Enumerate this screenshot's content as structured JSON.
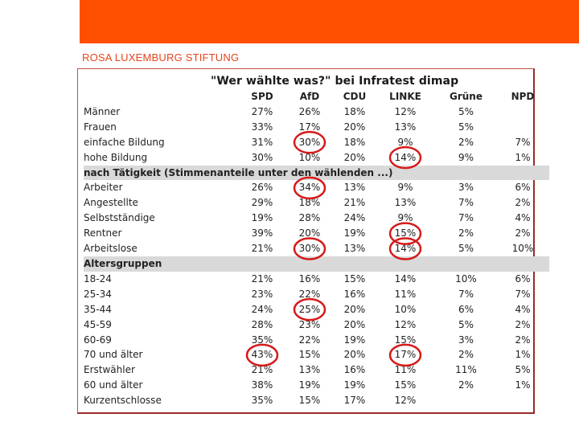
{
  "brand": "ROSA LUXEMBURG STIFTUNG",
  "table": {
    "title": "\"Wer wählte was?\" bei Infratest dimap",
    "columns": [
      "SPD",
      "AfD",
      "CDU",
      "LINKE",
      "Grüne",
      "NPD"
    ],
    "rows": [
      {
        "type": "data",
        "label": "Männer",
        "values": [
          "27%",
          "26%",
          "18%",
          "12%",
          "5%",
          ""
        ]
      },
      {
        "type": "data",
        "label": "Frauen",
        "values": [
          "33%",
          "17%",
          "20%",
          "13%",
          "5%",
          ""
        ]
      },
      {
        "type": "data",
        "label": "einfache Bildung",
        "values": [
          "31%",
          "30%",
          "18%",
          "9%",
          "2%",
          "7%"
        ]
      },
      {
        "type": "data",
        "label": "hohe Bildung",
        "values": [
          "30%",
          "10%",
          "20%",
          "14%",
          "9%",
          "1%"
        ]
      },
      {
        "type": "section",
        "label": "nach Tätigkeit (Stimmenanteile unter den wählenden ...)"
      },
      {
        "type": "data",
        "label": "Arbeiter",
        "values": [
          "26%",
          "34%",
          "13%",
          "9%",
          "3%",
          "6%"
        ]
      },
      {
        "type": "data",
        "label": "Angestellte",
        "values": [
          "29%",
          "18%",
          "21%",
          "13%",
          "7%",
          "2%"
        ]
      },
      {
        "type": "data",
        "label": "Selbstständige",
        "values": [
          "19%",
          "28%",
          "24%",
          "9%",
          "7%",
          "4%"
        ]
      },
      {
        "type": "data",
        "label": "Rentner",
        "values": [
          "39%",
          "20%",
          "19%",
          "15%",
          "2%",
          "2%"
        ]
      },
      {
        "type": "data",
        "label": "Arbeitslose",
        "values": [
          "21%",
          "30%",
          "13%",
          "14%",
          "5%",
          "10%"
        ]
      },
      {
        "type": "section",
        "label": "Altersgruppen"
      },
      {
        "type": "data",
        "label": "18-24",
        "values": [
          "21%",
          "16%",
          "15%",
          "14%",
          "10%",
          "6%"
        ]
      },
      {
        "type": "data",
        "label": "25-34",
        "values": [
          "23%",
          "22%",
          "16%",
          "11%",
          "7%",
          "7%"
        ]
      },
      {
        "type": "data",
        "label": "35-44",
        "values": [
          "24%",
          "25%",
          "20%",
          "10%",
          "6%",
          "4%"
        ]
      },
      {
        "type": "data",
        "label": "45-59",
        "values": [
          "28%",
          "23%",
          "20%",
          "12%",
          "5%",
          "2%"
        ]
      },
      {
        "type": "data",
        "label": "60-69",
        "values": [
          "35%",
          "22%",
          "19%",
          "15%",
          "3%",
          "2%"
        ]
      },
      {
        "type": "data",
        "label": "70 und älter",
        "values": [
          "43%",
          "15%",
          "20%",
          "17%",
          "2%",
          "1%"
        ]
      },
      {
        "type": "data",
        "label": "Erstwähler",
        "values": [
          "21%",
          "13%",
          "16%",
          "11%",
          "11%",
          "5%"
        ]
      },
      {
        "type": "data",
        "label": "60 und älter",
        "values": [
          "38%",
          "19%",
          "19%",
          "15%",
          "2%",
          "1%"
        ]
      },
      {
        "type": "data",
        "label": "Kurzentschlosse",
        "values": [
          "35%",
          "15%",
          "17%",
          "12%",
          "",
          ""
        ]
      }
    ]
  },
  "circled_cells": [
    {
      "row": 2,
      "col": 1
    },
    {
      "row": 3,
      "col": 3
    },
    {
      "row": 5,
      "col": 1
    },
    {
      "row": 8,
      "col": 3
    },
    {
      "row": 9,
      "col": 1
    },
    {
      "row": 9,
      "col": 3
    },
    {
      "row": 13,
      "col": 1
    },
    {
      "row": 16,
      "col": 0
    },
    {
      "row": 16,
      "col": 3
    }
  ],
  "colors": {
    "accent": "#fe5000",
    "brand_text": "#e8431b",
    "circle": "#d61a1a",
    "section_bg": "#d9d9d9"
  }
}
